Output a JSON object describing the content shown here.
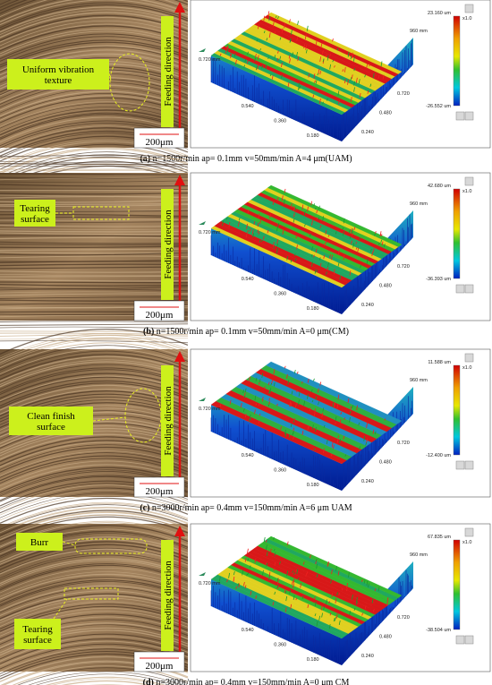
{
  "panels": [
    {
      "label": "(a)",
      "caption": "n=1500r/min ap= 0.1mm v=50mm/min A=4 μm(UAM)",
      "micrograph": {
        "annotations": [
          [
            "Uniform vibration",
            "texture"
          ]
        ],
        "feeding": "Feeding direction",
        "scale": "200μm"
      },
      "surface": {
        "axis_left": [
          "0.720 mm",
          "0.540",
          "0.360",
          "0.180"
        ],
        "axis_right": [
          "960 mm",
          "0.720",
          "0.480",
          "0.240"
        ],
        "colorbar": {
          "max": "23.160 um",
          "min": "-26.552 um",
          "zoom": "x1.0"
        }
      }
    },
    {
      "label": "(b)",
      "caption": "n=1500r/min ap= 0.1mm v=50mm/min A=0 μm(CM)",
      "micrograph": {
        "annotations": [
          [
            "Tearing",
            "surface"
          ]
        ],
        "feeding": "Feeding direction",
        "scale": "200μm"
      },
      "surface": {
        "axis_left": [
          "0.720 mm",
          "0.540",
          "0.360",
          "0.180"
        ],
        "axis_right": [
          "960 mm",
          "0.720",
          "0.480",
          "0.240"
        ],
        "colorbar": {
          "max": "42.680 um",
          "min": "-36.393 um",
          "zoom": "x1.0"
        }
      }
    },
    {
      "label": "(c)",
      "caption": "n=3000r/min ap= 0.4mm v=150mm/min A=6 μm UAM",
      "micrograph": {
        "annotations": [
          [
            "Clean finish",
            "surface"
          ]
        ],
        "feeding": "Feeding direction",
        "scale": "200μm"
      },
      "surface": {
        "axis_left": [
          "0.720 mm",
          "0.540",
          "0.360",
          "0.180"
        ],
        "axis_right": [
          "960 mm",
          "0.720",
          "0.480",
          "0.240"
        ],
        "colorbar": {
          "max": "11.588 um",
          "min": "-12.400 um",
          "zoom": "x1.0"
        }
      }
    },
    {
      "label": "(d)",
      "caption": "n=3000r/min ap= 0.4mm v=150mm/min A=0 μm CM",
      "micrograph": {
        "annotations": [
          [
            "Burr"
          ],
          [
            "Tearing",
            "surface"
          ]
        ],
        "feeding": "Feeding direction",
        "scale": "200μm"
      },
      "surface": {
        "axis_left": [
          "0.720 mm",
          "0.540",
          "0.360",
          "0.180"
        ],
        "axis_right": [
          "960 mm",
          "0.720",
          "0.480",
          "0.240"
        ],
        "colorbar": {
          "max": "67.835 um",
          "min": "-38.504 um",
          "zoom": "x1.0"
        }
      }
    }
  ]
}
